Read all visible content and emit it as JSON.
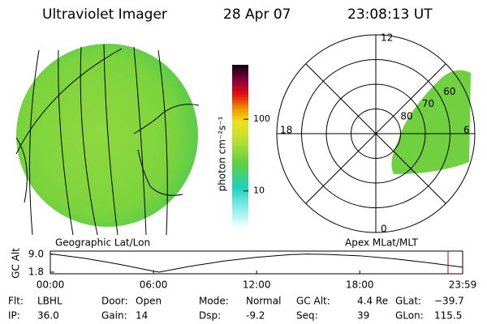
{
  "header": {
    "title": "Ultraviolet Imager",
    "date": "28 Apr 07",
    "time": "23:08:13 UT"
  },
  "left_panel": {
    "label": "Geographic Lat/Lon"
  },
  "colorbar": {
    "axis_label": "photon cm⁻²s⁻¹",
    "log": true,
    "clim": [
      3,
      575
    ],
    "ticks": [
      10,
      100
    ]
  },
  "polar_panel": {
    "label": "Apex MLat/MLT",
    "rlim": [
      90,
      50
    ],
    "rings": [
      80,
      70,
      60
    ],
    "mlt_labels": {
      "top": "12",
      "left": "18",
      "right": "6",
      "bottom": "0"
    }
  },
  "altitude_plot": {
    "ylabel": "GC Alt",
    "xlim": [
      0,
      1439
    ],
    "ylim": [
      1.15,
      10.3
    ],
    "xticks": [
      {
        "value": 0,
        "label": "00:00"
      },
      {
        "value": 360,
        "label": "06:00"
      },
      {
        "value": 720,
        "label": "12:00"
      },
      {
        "value": 1080,
        "label": "18:00"
      },
      {
        "value": 1439,
        "label": "23:59"
      }
    ],
    "yticks": [
      {
        "value": 9.0,
        "label": "9.0"
      },
      {
        "value": 1.8,
        "label": "1.8"
      }
    ],
    "x": [
      0,
      120,
      240,
      360,
      380,
      480,
      600,
      720,
      840,
      900,
      960,
      1080,
      1200,
      1320,
      1439
    ],
    "values": [
      9.2,
      7.4,
      5.0,
      2.2,
      1.8,
      4.0,
      6.2,
      7.8,
      8.9,
      9.1,
      9.0,
      8.4,
      7.2,
      5.6,
      3.8
    ],
    "current_time": 1388,
    "line_color": "#000000",
    "marker_color": "#c00000"
  },
  "footer": {
    "rows": [
      [
        [
          "Flt:",
          "LBHL"
        ],
        [
          "Door:",
          "Open"
        ],
        [
          "Mode:",
          "Normal"
        ],
        [
          "GC Alt:",
          "4.4 Re"
        ],
        [
          "GLat:",
          "−39.7"
        ]
      ],
      [
        [
          "IP:",
          "36.0"
        ],
        [
          "Gain:",
          "14"
        ],
        [
          "Dsp:",
          "-9.2"
        ],
        [
          "Seq:",
          "39"
        ],
        [
          "GLon:",
          "115.5"
        ]
      ]
    ]
  }
}
